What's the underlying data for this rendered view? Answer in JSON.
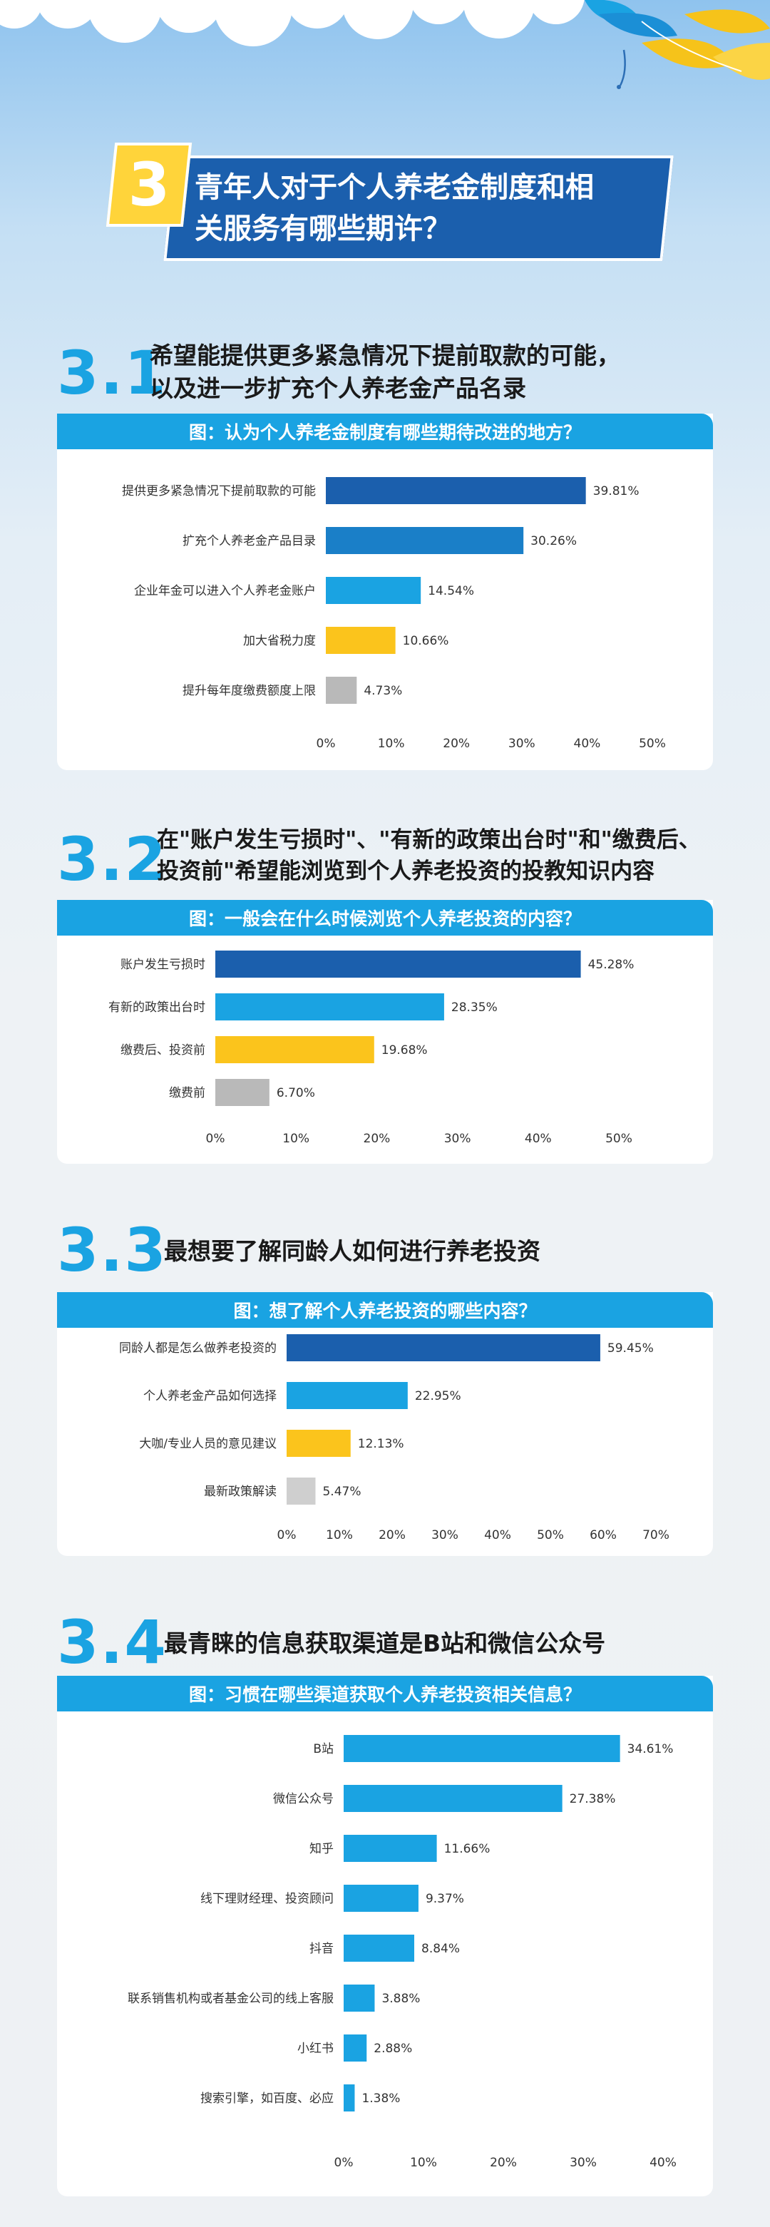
{
  "header": {
    "section_number": "3",
    "title_line1": "青年人对于个人养老金制度和相",
    "title_line2": "关服务有哪些期许？"
  },
  "colors": {
    "navy": "#1b5fad",
    "blue": "#1a7fc8",
    "cyan": "#1aa3e2",
    "yellow": "#fbc41c",
    "gray": "#b9b9b9"
  },
  "sections": [
    {
      "number": "3.1",
      "title_lines": [
        "希望能提供更多紧急情况下提前取款的可能，",
        "以及进一步扩充个人养老金产品名录"
      ],
      "chart_title": "图：认为个人养老金制度有哪些期待改进的地方？"
    },
    {
      "number": "3.2",
      "title_lines": [
        "在\"账户发生亏损时\"、\"有新的政策出台时\"和\"缴费后、",
        "投资前\"希望能浏览到个人养老投资的投教知识内容"
      ],
      "chart_title": "图：一般会在什么时候浏览个人养老投资的内容？"
    },
    {
      "number": "3.3",
      "title_lines": [
        "最想要了解同龄人如何进行养老投资"
      ],
      "chart_title": "图：想了解个人养老投资的哪些内容？"
    },
    {
      "number": "3.4",
      "title_lines": [
        "最青睐的信息获取渠道是B站和微信公众号"
      ],
      "chart_title": "图：习惯在哪些渠道获取个人养老投资相关信息？"
    }
  ],
  "chart_data": [
    {
      "type": "bar",
      "orientation": "horizontal",
      "title": "图：认为个人养老金制度有哪些期待改进的地方？",
      "categories": [
        "提供更多紧急情况下提前取款的可能",
        "扩充个人养老金产品目录",
        "企业年金可以进入个人养老金账户",
        "加大省税力度",
        "提升每年度缴费额度上限"
      ],
      "values": [
        39.81,
        30.26,
        14.54,
        10.66,
        4.73
      ],
      "labels": [
        "39.81%",
        "30.26%",
        "14.54%",
        "10.66%",
        "4.73%"
      ],
      "bar_colors": [
        "#1b5fad",
        "#1a7fc8",
        "#1aa3e2",
        "#fbc41c",
        "#b9b9b9"
      ],
      "ticks": [
        "0%",
        "10%",
        "20%",
        "30%",
        "40%",
        "50%"
      ],
      "xlim": [
        0,
        50
      ]
    },
    {
      "type": "bar",
      "orientation": "horizontal",
      "title": "图：一般会在什么时候浏览个人养老投资的内容？",
      "categories": [
        "账户发生亏损时",
        "有新的政策出台时",
        "缴费后、投资前",
        "缴费前"
      ],
      "values": [
        45.28,
        28.35,
        19.68,
        6.7
      ],
      "labels": [
        "45.28%",
        "28.35%",
        "19.68%",
        "6.70%"
      ],
      "bar_colors": [
        "#1b5fad",
        "#1aa3e2",
        "#fbc41c",
        "#b9b9b9"
      ],
      "ticks": [
        "0%",
        "10%",
        "20%",
        "30%",
        "40%",
        "50%"
      ],
      "xlim": [
        0,
        50
      ]
    },
    {
      "type": "bar",
      "orientation": "horizontal",
      "title": "图：想了解个人养老投资的哪些内容？",
      "categories": [
        "同龄人都是怎么做养老投资的",
        "个人养老金产品如何选择",
        "大咖/专业人员的意见建议",
        "最新政策解读"
      ],
      "values": [
        59.45,
        22.95,
        12.13,
        5.47
      ],
      "labels": [
        "59.45%",
        "22.95%",
        "12.13%",
        "5.47%"
      ],
      "bar_colors": [
        "#1b5fad",
        "#1aa3e2",
        "#fbc41c",
        "#cfcfcf"
      ],
      "ticks": [
        "0%",
        "10%",
        "20%",
        "30%",
        "40%",
        "50%",
        "60%",
        "70%"
      ],
      "xlim": [
        0,
        70
      ]
    },
    {
      "type": "bar",
      "orientation": "horizontal",
      "title": "图：习惯在哪些渠道获取个人养老投资相关信息？",
      "categories": [
        "B站",
        "微信公众号",
        "知乎",
        "线下理财经理、投资顾问",
        "抖音",
        "联系销售机构或者基金公司的线上客服",
        "小红书",
        "搜索引擎，如百度、必应"
      ],
      "values": [
        34.61,
        27.38,
        11.66,
        9.37,
        8.84,
        3.88,
        2.88,
        1.38
      ],
      "labels": [
        "34.61%",
        "27.38%",
        "11.66%",
        "9.37%",
        "8.84%",
        "3.88%",
        "2.88%",
        "1.38%"
      ],
      "bar_colors": [
        "#1aa3e2",
        "#1aa3e2",
        "#1aa3e2",
        "#1aa3e2",
        "#1aa3e2",
        "#1aa3e2",
        "#1aa3e2",
        "#1aa3e2"
      ],
      "ticks": [
        "0%",
        "10%",
        "20%",
        "30%",
        "40%"
      ],
      "xlim": [
        0,
        40
      ]
    }
  ]
}
